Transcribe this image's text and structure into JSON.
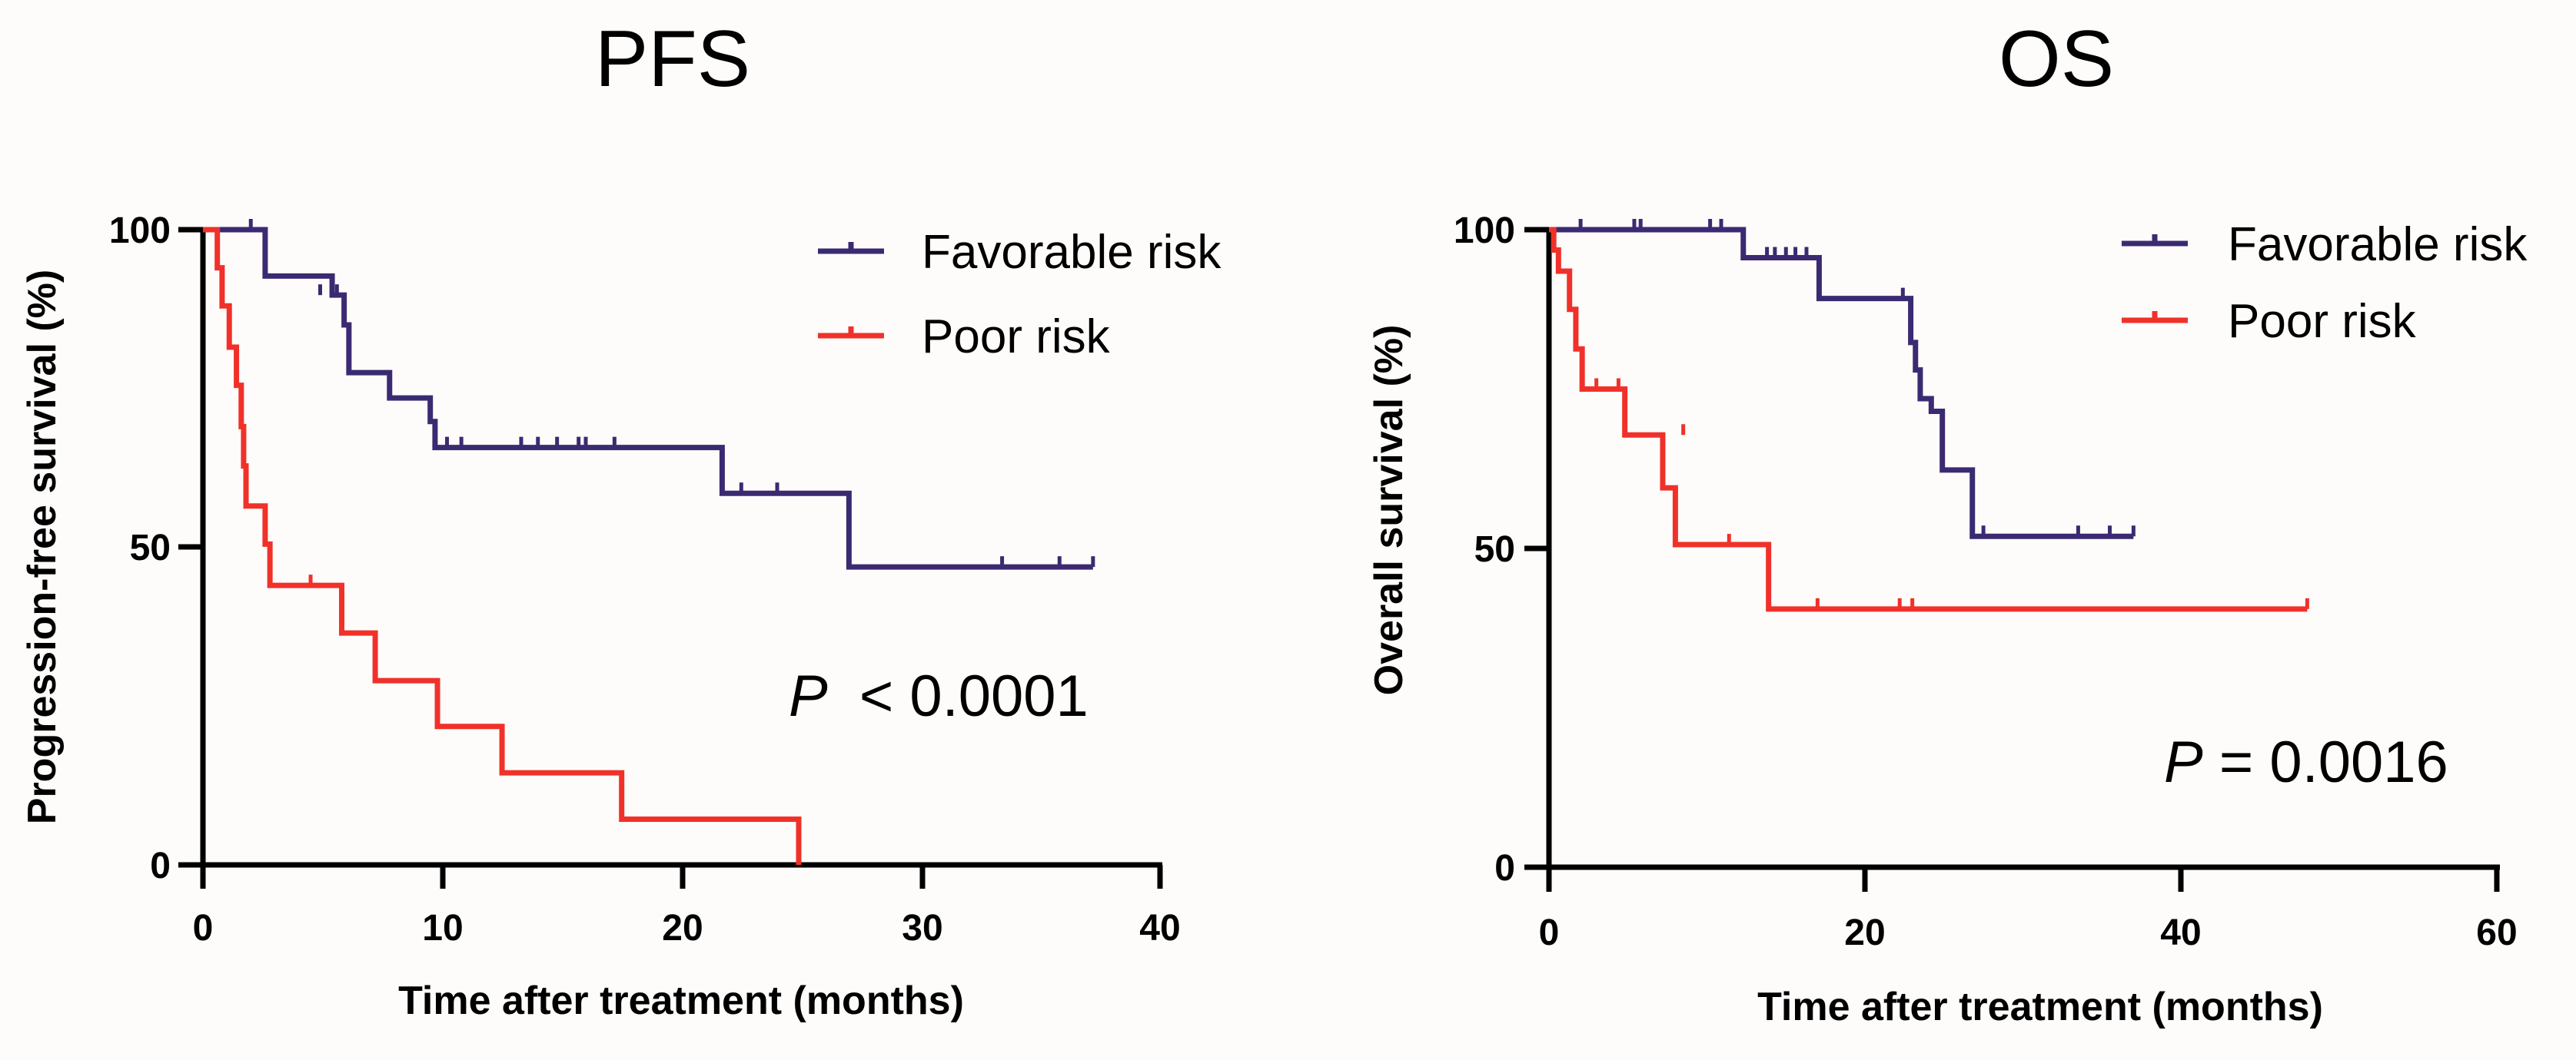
{
  "colors": {
    "favorable": "#3b2a72",
    "poor": "#f0312a",
    "axis": "#000000",
    "background": "#fdfcfa"
  },
  "chart_data": [
    {
      "type": "line",
      "title": "PFS",
      "xlabel": "Time after treatment (months)",
      "ylabel": "Progression-free survival (%)",
      "xlim": [
        0,
        40
      ],
      "ylim": [
        0,
        100
      ],
      "xticks": [
        "0",
        "10",
        "20",
        "30",
        "40"
      ],
      "yticks": [
        "0",
        "50",
        "100"
      ],
      "pvalue": {
        "prefix": "P",
        "text": "< 0.0001"
      },
      "series": [
        {
          "name": "Favorable risk",
          "color_key": "favorable",
          "steps": [
            [
              0,
              100
            ],
            [
              2.6,
              92.7
            ],
            [
              5.4,
              89.7
            ],
            [
              5.9,
              85
            ],
            [
              6.1,
              77.5
            ],
            [
              7.8,
              73.5
            ],
            [
              9.5,
              69.8
            ],
            [
              9.7,
              65.7
            ],
            [
              21.7,
              58.5
            ],
            [
              27.0,
              46.9
            ],
            [
              37.2,
              46.9
            ]
          ],
          "censors": [
            [
              2.0,
              100
            ],
            [
              4.9,
              89.7
            ],
            [
              5.6,
              89.7
            ],
            [
              10.2,
              65.7
            ],
            [
              10.8,
              65.7
            ],
            [
              13.3,
              65.7
            ],
            [
              14.0,
              65.7
            ],
            [
              14.8,
              65.7
            ],
            [
              15.7,
              65.7
            ],
            [
              16.0,
              65.7
            ],
            [
              17.2,
              65.7
            ],
            [
              22.5,
              58.5
            ],
            [
              24.0,
              58.5
            ],
            [
              33.4,
              46.9
            ],
            [
              35.8,
              46.9
            ],
            [
              37.2,
              46.9
            ]
          ]
        },
        {
          "name": "Poor risk",
          "color_key": "poor",
          "steps": [
            [
              0,
              100
            ],
            [
              0.6,
              94
            ],
            [
              0.8,
              88
            ],
            [
              1.1,
              81.5
            ],
            [
              1.4,
              75.5
            ],
            [
              1.6,
              69
            ],
            [
              1.7,
              62.8
            ],
            [
              1.8,
              56.5
            ],
            [
              2.6,
              50.5
            ],
            [
              2.8,
              44
            ],
            [
              5.8,
              36.5
            ],
            [
              7.2,
              29
            ],
            [
              9.8,
              21.8
            ],
            [
              12.5,
              14.5
            ],
            [
              17.5,
              7.2
            ],
            [
              24.9,
              0
            ]
          ],
          "censors": [
            [
              4.5,
              44
            ]
          ]
        }
      ]
    },
    {
      "type": "line",
      "title": "OS",
      "xlabel": "Time after treatment (months)",
      "ylabel": "Overall survival (%)",
      "xlim": [
        0,
        60
      ],
      "ylim": [
        0,
        100
      ],
      "xticks": [
        "0",
        "20",
        "40",
        "60"
      ],
      "yticks": [
        "0",
        "50",
        "100"
      ],
      "pvalue": {
        "prefix": "P",
        "text": " = 0.0016"
      },
      "series": [
        {
          "name": "Favorable risk",
          "color_key": "favorable",
          "steps": [
            [
              0,
              100
            ],
            [
              12.3,
              95.6
            ],
            [
              17.1,
              89.2
            ],
            [
              22.9,
              82.3
            ],
            [
              23.2,
              78
            ],
            [
              23.5,
              73.5
            ],
            [
              24.2,
              71.5
            ],
            [
              24.9,
              62.3
            ],
            [
              26.8,
              51.9
            ],
            [
              37.0,
              51.9
            ]
          ],
          "censors": [
            [
              2.0,
              100
            ],
            [
              5.4,
              100
            ],
            [
              5.8,
              100
            ],
            [
              10.2,
              100
            ],
            [
              10.9,
              100
            ],
            [
              13.8,
              95.6
            ],
            [
              14.3,
              95.6
            ],
            [
              15.0,
              95.6
            ],
            [
              15.6,
              95.6
            ],
            [
              16.3,
              95.6
            ],
            [
              22.4,
              89.2
            ],
            [
              27.5,
              51.9
            ],
            [
              33.5,
              51.9
            ],
            [
              35.5,
              51.9
            ],
            [
              37.0,
              51.9
            ]
          ]
        },
        {
          "name": "Poor risk",
          "color_key": "poor",
          "steps": [
            [
              0,
              100
            ],
            [
              0.3,
              96.8
            ],
            [
              0.6,
              93.5
            ],
            [
              1.3,
              87.5
            ],
            [
              1.7,
              81.3
            ],
            [
              2.1,
              75
            ],
            [
              4.8,
              67.8
            ],
            [
              7.2,
              59.5
            ],
            [
              8.0,
              50.6
            ],
            [
              13.9,
              40.5
            ],
            [
              48.0,
              40.5
            ]
          ],
          "censors": [
            [
              3.0,
              75
            ],
            [
              4.4,
              75
            ],
            [
              8.5,
              67.8
            ],
            [
              11.4,
              50.6
            ],
            [
              17.0,
              40.5
            ],
            [
              22.2,
              40.5
            ],
            [
              23.0,
              40.5
            ],
            [
              48.0,
              40.5
            ]
          ]
        }
      ]
    }
  ]
}
